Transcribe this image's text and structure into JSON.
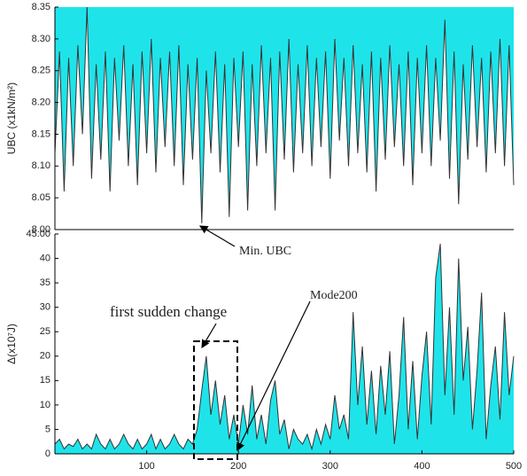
{
  "chart_data": [
    {
      "type": "area",
      "fill_to": "top",
      "y_label": "UBC (x1kN/m²)",
      "color": "#1ee4ea",
      "line_color": "#333333",
      "xlim": [
        0,
        500
      ],
      "ylim": [
        8,
        8.35
      ],
      "yticks": [
        {
          "value": 8,
          "label": "8.00"
        },
        8.05,
        {
          "value": 8.1,
          "label": "8.10"
        },
        8.15,
        {
          "value": 8.2,
          "label": "8.20"
        },
        8.25,
        {
          "value": 8.3,
          "label": "8.30"
        },
        8.35
      ],
      "annotations": [
        "Min. UBC"
      ],
      "x": [
        0,
        5,
        10,
        15,
        20,
        25,
        30,
        35,
        40,
        45,
        50,
        55,
        60,
        65,
        70,
        75,
        80,
        85,
        90,
        95,
        100,
        105,
        110,
        115,
        120,
        125,
        130,
        135,
        140,
        145,
        150,
        155,
        160,
        165,
        170,
        175,
        180,
        185,
        190,
        195,
        200,
        205,
        210,
        215,
        220,
        225,
        230,
        235,
        240,
        245,
        250,
        255,
        260,
        265,
        270,
        275,
        280,
        285,
        290,
        295,
        300,
        305,
        310,
        315,
        320,
        325,
        330,
        335,
        340,
        345,
        350,
        355,
        360,
        365,
        370,
        375,
        380,
        385,
        390,
        395,
        400,
        405,
        410,
        415,
        420,
        425,
        430,
        435,
        440,
        445,
        450,
        455,
        460,
        465,
        470,
        475,
        480,
        485,
        490,
        495,
        500
      ],
      "values": [
        8.12,
        8.28,
        8.06,
        8.27,
        8.1,
        8.29,
        8.15,
        8.35,
        8.08,
        8.26,
        8.11,
        8.28,
        8.06,
        8.27,
        8.14,
        8.29,
        8.1,
        8.26,
        8.07,
        8.28,
        8.12,
        8.3,
        8.09,
        8.27,
        8.13,
        8.28,
        8.1,
        8.29,
        8.07,
        8.26,
        8.11,
        8.27,
        8.01,
        8.25,
        8.12,
        8.28,
        8.09,
        8.26,
        8.02,
        8.27,
        8.13,
        8.28,
        8.03,
        8.26,
        8.1,
        8.29,
        8.12,
        8.27,
        8.03,
        8.28,
        8.11,
        8.3,
        8.09,
        8.26,
        8.12,
        8.29,
        8.1,
        8.27,
        8.13,
        8.28,
        8.08,
        8.3,
        8.14,
        8.27,
        8.1,
        8.29,
        8.12,
        8.26,
        8.09,
        8.28,
        8.06,
        8.27,
        8.11,
        8.29,
        8.13,
        8.26,
        8.1,
        8.28,
        8.07,
        8.27,
        8.12,
        8.29,
        8.1,
        8.27,
        8.14,
        8.33,
        8.08,
        8.28,
        8.04,
        8.26,
        8.11,
        8.29,
        8.13,
        8.27,
        8.09,
        8.28,
        8.12,
        8.3,
        8.1,
        8.29,
        8.07
      ]
    },
    {
      "type": "area",
      "fill_to": "bottom",
      "y_label": "Δ(x10⁷J)",
      "color": "#1ee4ea",
      "line_color": "#333333",
      "xlim": [
        0,
        500
      ],
      "ylim": [
        0,
        45
      ],
      "xticks": [
        100,
        200,
        300,
        400,
        500
      ],
      "yticks": [
        0,
        5,
        10,
        15,
        20,
        25,
        30,
        35,
        40,
        {
          "value": 45,
          "label": "45.00"
        }
      ],
      "annotations": [
        "first sudden change",
        "Mode200"
      ],
      "x": [
        0,
        5,
        10,
        15,
        20,
        25,
        30,
        35,
        40,
        45,
        50,
        55,
        60,
        65,
        70,
        75,
        80,
        85,
        90,
        95,
        100,
        105,
        110,
        115,
        120,
        125,
        130,
        135,
        140,
        145,
        150,
        155,
        160,
        165,
        170,
        175,
        180,
        185,
        190,
        195,
        200,
        205,
        210,
        215,
        220,
        225,
        230,
        235,
        240,
        245,
        250,
        255,
        260,
        265,
        270,
        275,
        280,
        285,
        290,
        295,
        300,
        305,
        310,
        315,
        320,
        325,
        330,
        335,
        340,
        345,
        350,
        355,
        360,
        365,
        370,
        375,
        380,
        385,
        390,
        395,
        400,
        405,
        410,
        415,
        420,
        425,
        430,
        435,
        440,
        445,
        450,
        455,
        460,
        465,
        470,
        475,
        480,
        485,
        490,
        495,
        500
      ],
      "values": [
        2,
        3,
        1,
        2,
        1.5,
        3,
        1,
        2,
        1,
        4,
        2,
        1,
        3,
        1,
        2,
        4,
        2,
        1,
        3,
        1,
        2,
        4,
        1,
        3,
        1,
        2,
        4,
        2,
        1,
        3,
        2,
        5,
        13,
        20,
        8,
        15,
        6,
        12,
        3,
        8,
        2,
        10,
        4,
        14,
        3,
        8,
        2,
        11,
        15,
        4,
        7,
        1,
        5,
        3,
        2,
        4,
        1,
        5,
        2,
        6,
        3,
        12,
        5,
        8,
        3,
        29,
        10,
        22,
        6,
        17,
        4,
        18,
        8,
        21,
        2,
        12,
        28,
        5,
        19,
        3,
        16,
        25,
        6,
        36,
        43,
        12,
        30,
        8,
        40,
        15,
        26,
        5,
        17,
        33,
        3,
        14,
        22,
        7,
        29,
        12,
        20
      ]
    }
  ]
}
